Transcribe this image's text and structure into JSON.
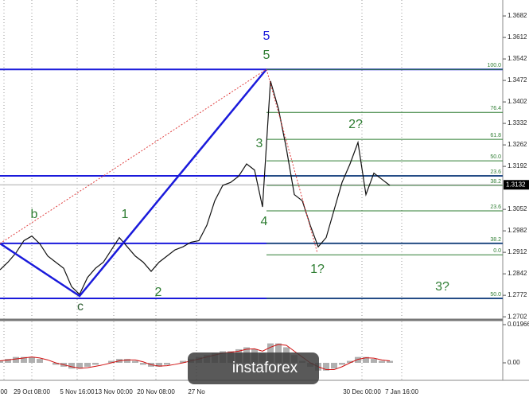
{
  "chart_data": [
    {
      "type": "line",
      "color": "#111111",
      "x": [
        0,
        1,
        2,
        3,
        4,
        5,
        6,
        7,
        8,
        9,
        10,
        11,
        12,
        13,
        14,
        15,
        16,
        17,
        18,
        19,
        20,
        21,
        22,
        23,
        24,
        25,
        26,
        27,
        28,
        29,
        30,
        31,
        32,
        33,
        34,
        35,
        36,
        37,
        38,
        39,
        40,
        41,
        42,
        43,
        44,
        45,
        46,
        47,
        48,
        49
      ],
      "values": [
        1.2855,
        1.288,
        1.291,
        1.295,
        1.2965,
        1.294,
        1.29,
        1.288,
        1.286,
        1.28,
        1.2775,
        1.283,
        1.286,
        1.288,
        1.292,
        1.296,
        1.293,
        1.29,
        1.288,
        1.285,
        1.288,
        1.29,
        1.292,
        1.293,
        1.2945,
        1.295,
        1.3,
        1.308,
        1.313,
        1.314,
        1.316,
        1.32,
        1.318,
        1.306,
        1.347,
        1.338,
        1.325,
        1.31,
        1.308,
        1.3,
        1.293,
        1.296,
        1.305,
        1.314,
        1.32,
        1.327,
        1.31,
        1.317,
        1.315,
        1.313
      ],
      "xlim": [
        0,
        63.2
      ],
      "ylim": [
        1.2692,
        1.3734
      ],
      "yticks": [
        1.3682,
        1.3612,
        1.3542,
        1.3472,
        1.3402,
        1.3332,
        1.3262,
        1.3192,
        1.3052,
        1.2982,
        1.2912,
        1.2842,
        1.2772,
        1.2702
      ],
      "xticks": [
        {
          "value": 0.5,
          "label": "00"
        },
        {
          "value": 4,
          "label": "29 Oct 08:00"
        },
        {
          "value": 9.7,
          "label": "5 Nov 16:00"
        },
        {
          "value": 14.3,
          "label": "13 Nov 00:00"
        },
        {
          "value": 19.6,
          "label": "20 Nov 08:00"
        },
        {
          "value": 24.7,
          "label": "27 No"
        },
        {
          "value": 45.5,
          "label": "30 Dec 00:00"
        },
        {
          "value": 50.5,
          "label": "7 Jan 16:00"
        }
      ],
      "hlines": [
        1.3508,
        1.3161,
        1.2941,
        1.2762
      ],
      "hline_color": "#1a1adb",
      "levels": [
        {
          "label": "100.0",
          "value": 1.3508
        },
        {
          "label": "76.4",
          "value": 1.3368
        },
        {
          "label": "61.8",
          "value": 1.328
        },
        {
          "label": "50.0",
          "value": 1.321
        },
        {
          "label": "23.6",
          "value": 1.3161
        },
        {
          "label": "38.2",
          "value": 1.313
        },
        {
          "label": "23.6",
          "value": 1.3047
        },
        {
          "label": "38.2",
          "value": 1.2941
        },
        {
          "label": "0.0",
          "value": 1.2904
        },
        {
          "label": "50.0",
          "value": 1.2762
        }
      ],
      "level_color": "#2e7d32",
      "last": 1.3132,
      "annotations": [
        "5",
        "5",
        "3",
        "4",
        "2?",
        "1?",
        "3?",
        "b",
        "1",
        "2",
        "c"
      ]
    },
    {
      "type": "bar",
      "color": "#b0b0b0",
      "line_color": "#d01010",
      "values": [
        0.001,
        0.002,
        0.003,
        0.003,
        0.003,
        0.002,
        0,
        -0.001,
        -0.002,
        -0.003,
        -0.003,
        -0.002,
        -0.001,
        0,
        0.001,
        0.002,
        0.002,
        0.001,
        -0.001,
        -0.002,
        -0.002,
        -0.001,
        0,
        0.001,
        0.002,
        0.003,
        0.004,
        0.005,
        0.006,
        0.006,
        0.007,
        0.008,
        0.007,
        0.005,
        0.01,
        0.01,
        0.008,
        0.004,
        0.001,
        -0.002,
        -0.004,
        -0.004,
        -0.003,
        -0.001,
        0.001,
        0.003,
        0.003,
        0.002,
        0.001,
        0.001
      ],
      "signal": [
        0.001,
        0.0015,
        0.002,
        0.0025,
        0.003,
        0.0025,
        0.0015,
        0,
        -0.001,
        -0.002,
        -0.0028,
        -0.0025,
        -0.0018,
        -0.001,
        0,
        0.001,
        0.0015,
        0.0015,
        0.0005,
        -0.001,
        -0.0017,
        -0.0015,
        -0.0008,
        0,
        0.001,
        0.002,
        0.003,
        0.004,
        0.005,
        0.0055,
        0.006,
        0.007,
        0.0072,
        0.006,
        0.008,
        0.0095,
        0.009,
        0.006,
        0.003,
        0,
        -0.002,
        -0.0035,
        -0.0035,
        -0.002,
        0,
        0.0018,
        0.0026,
        0.0024,
        0.0015,
        0.001
      ],
      "ylim": [
        -0.0041,
        0.0213
      ],
      "yticks": [
        0.01966,
        {
          "value": 0,
          "label": "0.00"
        }
      ]
    },
    {
      "type": "logo",
      "text": "instaforex"
    }
  ]
}
